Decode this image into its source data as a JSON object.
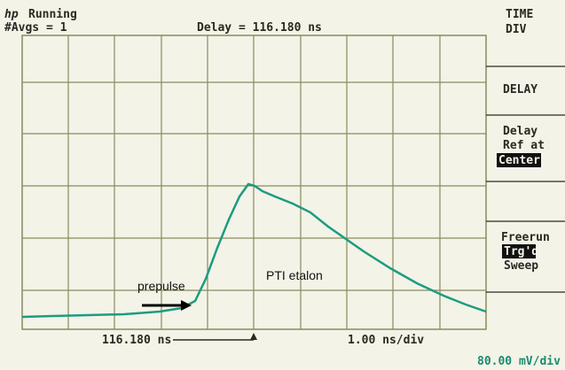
{
  "header": {
    "logo": "hp",
    "status": "Running",
    "averages": "#Avgs = 1",
    "delay": "Delay = 116.180 ns"
  },
  "softkeys": {
    "time_div": [
      "TIME",
      "DIV"
    ],
    "delay": "DELAY",
    "delay_ref": [
      "Delay",
      "Ref at",
      "Center"
    ],
    "sweep": [
      "Freerun",
      "Trg'd",
      "Sweep"
    ]
  },
  "annotations": {
    "prepulse": "prepulse",
    "etalon": "PTI etalon"
  },
  "footer": {
    "delay_marker": "116.180 ns",
    "timebase": "1.00 ns/div",
    "vertical": "80.00 mV/div"
  }
}
